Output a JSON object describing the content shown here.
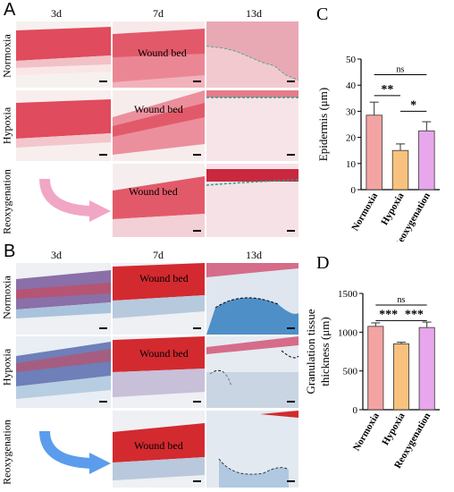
{
  "panelA": {
    "letter": "A",
    "columns": [
      "3d",
      "7d",
      "13d"
    ],
    "rows": [
      "Normoxia",
      "Hypoxia",
      "Reoxygenation"
    ],
    "wound_bed_label": "Wound bed"
  },
  "panelB": {
    "letter": "B",
    "columns": [
      "3d",
      "7d",
      "13d"
    ],
    "rows": [
      "Normoxia",
      "Hypoxia",
      "Reoxygenation"
    ],
    "wound_bed_label": "Wound bed"
  },
  "chart_data": [
    {
      "panel": "C",
      "type": "bar",
      "categories": [
        "Normoxia",
        "Hypoxia",
        "Reoxygenation"
      ],
      "values": [
        28.5,
        15,
        22.5
      ],
      "errors": [
        5,
        2.5,
        3.5
      ],
      "colors": [
        "#f4a3a3",
        "#f8c27e",
        "#e8a6ec"
      ],
      "ylabel": "Epidermis (μm)",
      "ylim": [
        0,
        50
      ],
      "yticks": [
        0,
        10,
        20,
        30,
        40,
        50
      ],
      "annotations": [
        {
          "from": "Normoxia",
          "to": "Reoxygenation",
          "label": "ns"
        },
        {
          "from": "Normoxia",
          "to": "Hypoxia",
          "label": "**"
        },
        {
          "from": "Hypoxia",
          "to": "Reoxygenation",
          "label": "*"
        }
      ]
    },
    {
      "panel": "D",
      "type": "bar",
      "categories": [
        "Normoxia",
        "Hypoxia",
        "Reoxygenation"
      ],
      "values": [
        1075,
        850,
        1060
      ],
      "errors": [
        45,
        20,
        70
      ],
      "colors": [
        "#f4a3a3",
        "#f8c27e",
        "#e8a6ec"
      ],
      "ylabel": "Granulation tissue thickness (μm)",
      "ylabel_lines": [
        "Granulation tissue",
        "thickness (μm)"
      ],
      "ylim": [
        0,
        1500
      ],
      "yticks": [
        0,
        500,
        1000,
        1500
      ],
      "annotations": [
        {
          "from": "Normoxia",
          "to": "Reoxygenation",
          "label": "ns"
        },
        {
          "from": "Normoxia",
          "to": "Hypoxia",
          "label": "***"
        },
        {
          "from": "Hypoxia",
          "to": "Reoxygenation",
          "label": "***"
        }
      ]
    }
  ]
}
